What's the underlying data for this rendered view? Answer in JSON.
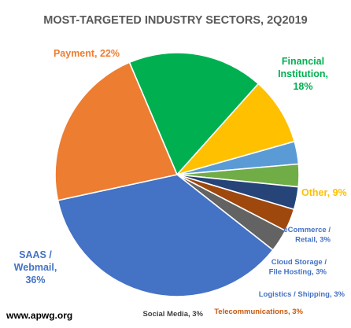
{
  "chart_data": {
    "type": "pie",
    "title": "MOST-TARGETED INDUSTRY SECTORS, 2Q2019",
    "slices": [
      {
        "name": "Financial Institution",
        "value": 18,
        "label_lines": [
          "Financial",
          "Institution,",
          "18%"
        ],
        "color": "#00b050",
        "label_color": "#00b050"
      },
      {
        "name": "Other",
        "value": 9,
        "label_lines": [
          "Other, 9%"
        ],
        "color": "#ffc000",
        "label_color": "#ffc000"
      },
      {
        "name": "eCommerce / Retail",
        "value": 3,
        "label_lines": [
          "eCommerce /",
          "Retail, 3%"
        ],
        "color": "#5b9bd5",
        "label_color": "#4472c4"
      },
      {
        "name": "Cloud Storage / File Hosting",
        "value": 3,
        "label_lines": [
          "Cloud Storage /",
          "File Hosting, 3%"
        ],
        "color": "#70ad47",
        "label_color": "#4472c4"
      },
      {
        "name": "Logistics / Shipping",
        "value": 3,
        "label_lines": [
          "Logistics / Shipping, 3%"
        ],
        "color": "#264478",
        "label_color": "#4472c4"
      },
      {
        "name": "Telecommunications",
        "value": 3,
        "label_lines": [
          "Telecommunications, 3%"
        ],
        "color": "#9e480e",
        "label_color": "#c55a11"
      },
      {
        "name": "Social Media",
        "value": 3,
        "label_lines": [
          "Social Media, 3%"
        ],
        "color": "#636363",
        "label_color": "#404040"
      },
      {
        "name": "SAAS / Webmail",
        "value": 36,
        "label_lines": [
          "SAAS /",
          "Webmail,",
          "36%"
        ],
        "color": "#4472c4",
        "label_color": "#4472c4"
      },
      {
        "name": "Payment",
        "value": 22,
        "label_lines": [
          "Payment, 22%"
        ],
        "color": "#ed7d31",
        "label_color": "#ed7d31"
      }
    ]
  },
  "source": "www.apwg.org"
}
